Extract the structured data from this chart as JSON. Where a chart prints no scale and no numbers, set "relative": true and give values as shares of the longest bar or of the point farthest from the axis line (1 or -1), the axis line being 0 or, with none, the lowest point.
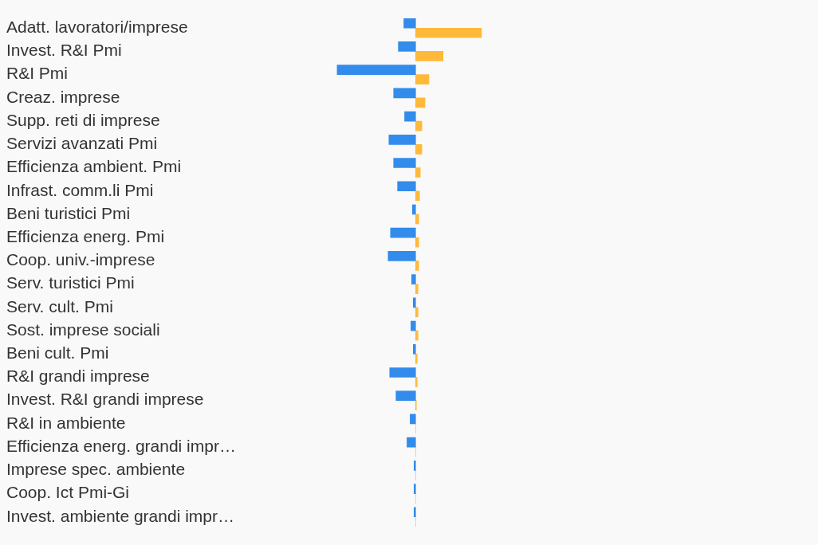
{
  "chart_data": {
    "type": "bar",
    "orientation": "horizontal",
    "relative": true,
    "legend": false,
    "categories": [
      "Adatt. lavoratori/imprese",
      "Invest. R&I Pmi",
      "R&I Pmi",
      "Creaz. imprese",
      "Supp. reti di imprese",
      "Servizi avanzati Pmi",
      "Efficienza ambient. Pmi",
      "Infrast. comm.li Pmi",
      "Beni turistici Pmi",
      "Efficienza energ. Pmi",
      "Coop. univ.-imprese",
      "Serv. turistici Pmi",
      "Serv. cult. Pmi",
      "Sost. imprese sociali",
      "Beni cult. Pmi",
      "R&I grandi imprese",
      "Invest. R&I grandi imprese",
      "R&I in ambiente",
      "Efficienza energ. grandi impr…",
      "Imprese spec. ambiente",
      "Coop. Ict Pmi-Gi",
      "Invest. ambiente grandi impr…"
    ],
    "series": [
      {
        "color": "#338ceb",
        "values": [
          -0.15,
          -0.22,
          -1,
          -0.28,
          -0.14,
          -0.34,
          -0.28,
          -0.23,
          -0.04,
          -0.32,
          -0.35,
          -0.05,
          -0.03,
          -0.06,
          -0.03,
          -0.33,
          -0.25,
          -0.07,
          -0.11,
          -0.02,
          -0.02,
          -0.02
        ]
      },
      {
        "color": "#ffb93a",
        "values": [
          0.84,
          0.35,
          0.17,
          0.12,
          0.08,
          0.08,
          0.06,
          0.05,
          0.04,
          0.04,
          0.04,
          0.03,
          0.03,
          0.03,
          0.02,
          0.02,
          0.01,
          0,
          0,
          0,
          0,
          0
        ]
      }
    ]
  }
}
